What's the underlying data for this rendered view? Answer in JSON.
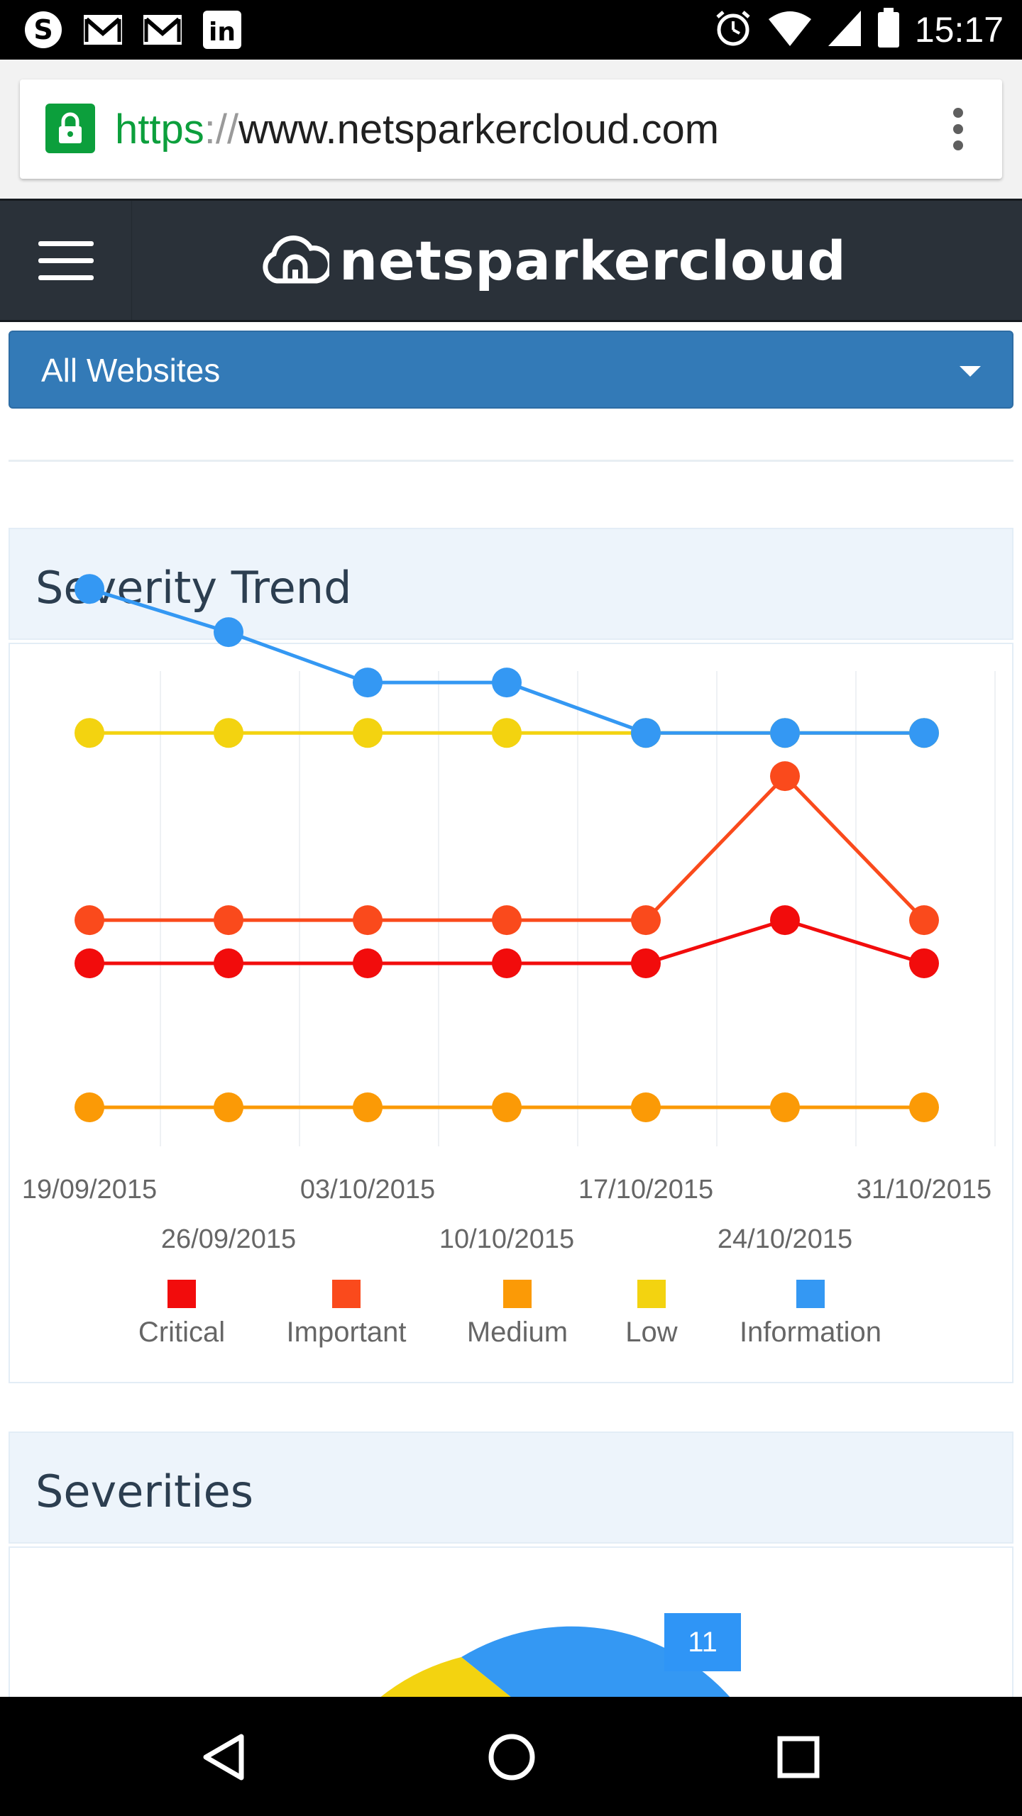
{
  "status_bar": {
    "time": "15:17",
    "left_icons": [
      "skype-icon",
      "gmail-icon",
      "gmail-icon",
      "linkedin-icon"
    ],
    "right_icons": [
      "alarm-icon",
      "wifi-icon",
      "signal-icon",
      "battery-icon"
    ]
  },
  "browser": {
    "url_scheme": "https",
    "url_separator": "://",
    "url_host": "www.netsparkercloud.com",
    "lock_color": "#0c9f3c"
  },
  "header": {
    "brand": "netsparkercloud",
    "background": "#2a3139"
  },
  "website_select": {
    "selected": "All Websites",
    "color": "#337ab7"
  },
  "severity_trend": {
    "title": "Severity Trend"
  },
  "severities": {
    "title": "Severities",
    "badge_value": "11"
  },
  "chart_data": {
    "type": "line",
    "title": "Severity Trend",
    "x": [
      "19/09/2015",
      "26/09/2015",
      "03/10/2015",
      "10/10/2015",
      "17/10/2015",
      "24/10/2015",
      "31/10/2015"
    ],
    "x_tick_rows": [
      "top",
      "bottom",
      "top",
      "bottom",
      "top",
      "bottom",
      "top"
    ],
    "grid": "vertical",
    "legend_position": "bottom",
    "series": [
      {
        "name": "Critical",
        "color": "#f20c0c",
        "values": [
          2,
          2,
          2,
          2,
          2,
          2.3,
          2
        ]
      },
      {
        "name": "Important",
        "color": "#fa4a1c",
        "values": [
          2.3,
          2.3,
          2.3,
          2.3,
          2.3,
          3.3,
          2.3
        ]
      },
      {
        "name": "Medium",
        "color": "#fb9a06",
        "values": [
          1,
          1,
          1,
          1,
          1,
          1,
          1
        ]
      },
      {
        "name": "Low",
        "color": "#f3d310",
        "values": [
          3.6,
          3.6,
          3.6,
          3.6,
          3.6,
          3.6,
          3.6
        ]
      },
      {
        "name": "Information",
        "color": "#3498f3",
        "values": [
          4.6,
          4.3,
          3.95,
          3.95,
          3.6,
          3.6,
          3.6
        ]
      }
    ]
  }
}
